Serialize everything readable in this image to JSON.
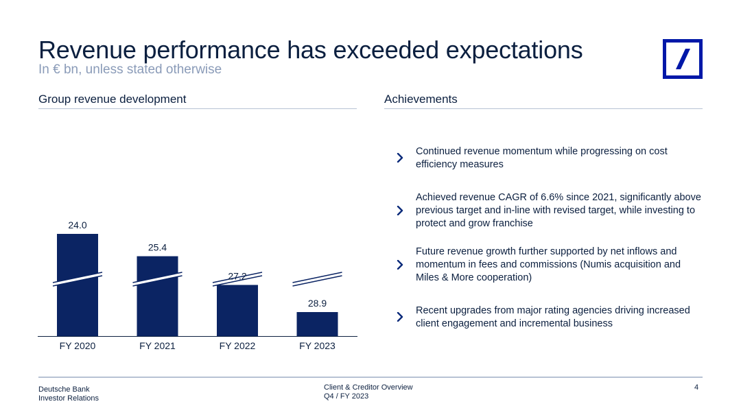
{
  "header": {
    "title": "Revenue performance has exceeded expectations",
    "subtitle": "In € bn, unless stated otherwise"
  },
  "left_section": {
    "heading": "Group revenue development"
  },
  "right_section": {
    "heading": "Achievements",
    "items": [
      {
        "text": "Continued revenue momentum while progressing on cost efficiency measures"
      },
      {
        "text": "Achieved revenue CAGR of 6.6% since 2021, significantly above previous target and in-line with revised target, while investing to protect and grow franchise"
      },
      {
        "text": "Future revenue growth further supported by net inflows and momentum in fees and commissions (Numis acquisition and Miles & More cooperation)"
      },
      {
        "text": "Recent upgrades from major rating agencies driving increased client engagement and incremental business"
      }
    ]
  },
  "footer": {
    "org_line1": "Deutsche Bank",
    "org_line2": "Investor Relations",
    "doc_line1": "Client & Creditor Overview",
    "doc_line2": "Q4 / FY 2023",
    "page_number": "4"
  },
  "colors": {
    "bar": "#0b2463",
    "accent": "#0018a8",
    "chevron": "#0a2a7a",
    "divider": "#b7c2d3"
  },
  "chart_data": {
    "type": "bar",
    "categories": [
      "FY 2020",
      "FY 2021",
      "FY 2022",
      "FY 2023"
    ],
    "values": [
      24.0,
      25.4,
      27.2,
      28.9
    ],
    "data_labels": [
      "24.0",
      "25.4",
      "27.2",
      "28.9"
    ],
    "axis_break": true,
    "grid": false,
    "legend": "none"
  }
}
